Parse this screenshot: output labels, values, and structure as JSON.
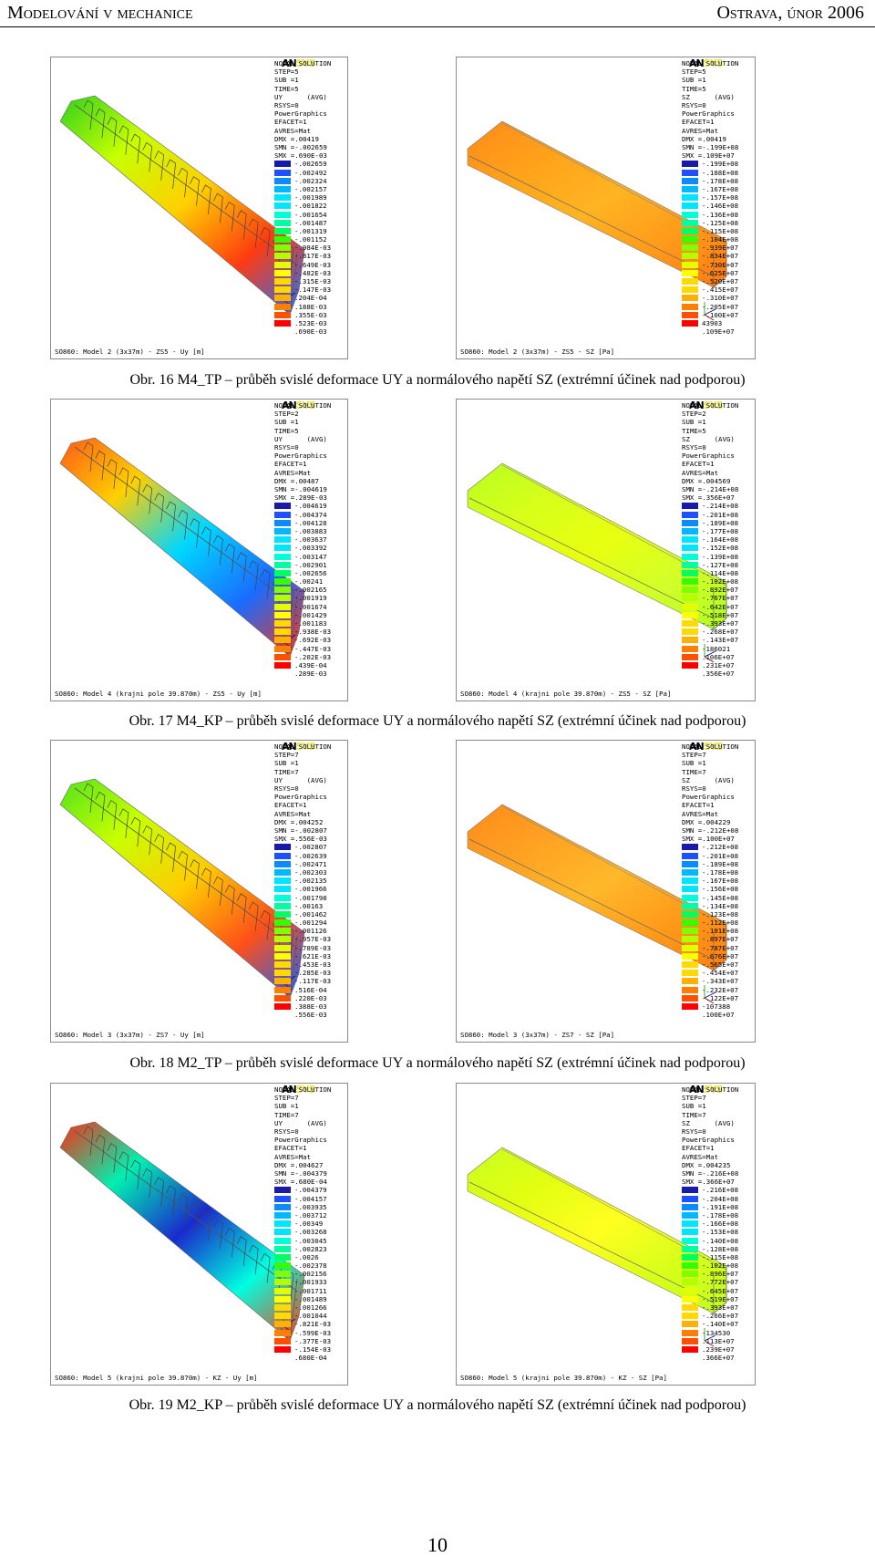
{
  "header": {
    "left_title": "Modelování v mechanice",
    "right_title": "Ostrava, únor 2006"
  },
  "logo": {
    "part1": "AN",
    "part2": "SYS"
  },
  "legend_colors": [
    "#1a1aa8",
    "#1f50ff",
    "#0a8cff",
    "#00b8ff",
    "#00e5ff",
    "#00ffd6",
    "#00ffa0",
    "#00ff60",
    "#33ff00",
    "#7fff00",
    "#b3ff00",
    "#e1ff00",
    "#ffff00",
    "#ffd900",
    "#ffb000",
    "#ff8000",
    "#ff5000",
    "#ff0000"
  ],
  "figures": [
    {
      "caption": "Obr. 16 M4_TP – průběh svislé deformace UY a normálového napětí SZ (extrémní účinek nad podporou)",
      "panels": [
        {
          "info": [
            "NODAL SOLUTION",
            "STEP=5",
            "SUB =1",
            "TIME=5",
            "UY      (AVG)",
            "RSYS=0",
            "PowerGraphics",
            "EFACET=1",
            "AVRES=Mat",
            "DMX =.00419",
            "SMN =-.002659",
            "SMX =.690E-03"
          ],
          "legend": [
            "-.002659",
            "-.002492",
            "-.002324",
            "-.002157",
            "-.001989",
            "-.001822",
            "-.001654",
            "-.001487",
            "-.001319",
            "-.001152",
            "-.984E-03",
            "-.817E-03",
            "-.649E-03",
            "-.482E-03",
            "-.315E-03",
            "-.147E-03",
            ".204E-04",
            ".188E-03",
            ".355E-03",
            ".523E-03",
            ".690E-03"
          ],
          "footer": "SO860: Model 2 (3x37m) - ZS5 - Uy [m]"
        },
        {
          "info": [
            "NODAL SOLUTION",
            "STEP=5",
            "SUB =1",
            "TIME=5",
            "SZ      (AVG)",
            "RSYS=0",
            "PowerGraphics",
            "EFACET=1",
            "AVRES=Mat",
            "DMX =.00419",
            "SMN =-.199E+08",
            "SMX =.109E+07"
          ],
          "legend": [
            "-.199E+08",
            "-.188E+08",
            "-.178E+08",
            "-.167E+08",
            "-.157E+08",
            "-.146E+08",
            "-.136E+08",
            "-.125E+08",
            "-.115E+08",
            "-.104E+08",
            "-.939E+07",
            "-.834E+07",
            "-.730E+07",
            "-.625E+07",
            "-.520E+07",
            "-.415E+07",
            "-.310E+07",
            "-.205E+07",
            "-.100E+07",
            "43903",
            ".109E+07"
          ],
          "footer": "SO860: Model 2 (3x37m) - ZS5 - SZ [Pa]"
        }
      ]
    },
    {
      "caption": "Obr. 17 M4_KP – průběh svislé deformace UY a normálového napětí SZ (extrémní účinek nad podporou)",
      "panels": [
        {
          "info": [
            "NODAL SOLUTION",
            "STEP=2",
            "SUB =1",
            "TIME=5",
            "UY      (AVG)",
            "RSYS=0",
            "PowerGraphics",
            "EFACET=1",
            "AVRES=Mat",
            "DMX =.00487",
            "SMN =-.004619",
            "SMX =.289E-03"
          ],
          "legend": [
            "-.004619",
            "-.004374",
            "-.004128",
            "-.003883",
            "-.003637",
            "-.003392",
            "-.003147",
            "-.002901",
            "-.002656",
            "-.00241",
            "-.002165",
            "-.001919",
            "-.001674",
            "-.001429",
            "-.001183",
            "-.938E-03",
            "-.692E-03",
            "-.447E-03",
            "-.202E-03",
            ".439E-04",
            ".289E-03"
          ],
          "footer": "SO860: Model 4 (krajni pole 39.870m) - ZS5 - Uy [m]"
        },
        {
          "info": [
            "NODAL SOLUTION",
            "STEP=2",
            "SUB =1",
            "TIME=5",
            "SZ      (AVG)",
            "RSYS=0",
            "PowerGraphics",
            "EFACET=1",
            "AVRES=Mat",
            "DMX =.004569",
            "SMN =-.214E+08",
            "SMX =.356E+07"
          ],
          "legend": [
            "-.214E+08",
            "-.201E+08",
            "-.189E+08",
            "-.177E+08",
            "-.164E+08",
            "-.152E+08",
            "-.139E+08",
            "-.127E+08",
            "-.114E+08",
            "-.102E+08",
            "-.892E+07",
            "-.767E+07",
            "-.642E+07",
            "-.518E+07",
            "-.393E+07",
            "-.268E+07",
            "-.143E+07",
            "-186021",
            ".106E+07",
            ".231E+07",
            ".356E+07"
          ],
          "footer": "SO860: Model 4 (krajni pole 39.870m) - ZS5 - SZ [Pa]"
        }
      ]
    },
    {
      "caption": "Obr. 18 M2_TP – průběh svislé deformace UY a normálového napětí SZ (extrémní účinek nad podporou)",
      "panels": [
        {
          "info": [
            "NODAL SOLUTION",
            "STEP=7",
            "SUB =1",
            "TIME=7",
            "UY      (AVG)",
            "RSYS=0",
            "PowerGraphics",
            "EFACET=1",
            "AVRES=Mat",
            "DMX =.004252",
            "SMN =-.002807",
            "SMX =.556E-03"
          ],
          "legend": [
            "-.002807",
            "-.002639",
            "-.002471",
            "-.002303",
            "-.002135",
            "-.001966",
            "-.001798",
            "-.00163",
            "-.001462",
            "-.001294",
            "-.001126",
            "-.957E-03",
            "-.789E-03",
            "-.621E-03",
            "-.453E-03",
            "-.285E-03",
            "-.117E-03",
            ".516E-04",
            ".220E-03",
            ".388E-03",
            ".556E-03"
          ],
          "footer": "SO860: Model 3 (3x37m) - ZS7 - Uy [m]"
        },
        {
          "info": [
            "NODAL SOLUTION",
            "STEP=7",
            "SUB =1",
            "TIME=7",
            "SZ      (AVG)",
            "RSYS=0",
            "PowerGraphics",
            "EFACET=1",
            "AVRES=Mat",
            "DMX =.004229",
            "SMN =-.212E+08",
            "SMX =.100E+07"
          ],
          "legend": [
            "-.212E+08",
            "-.201E+08",
            "-.189E+08",
            "-.178E+08",
            "-.167E+08",
            "-.156E+08",
            "-.145E+08",
            "-.134E+08",
            "-.123E+08",
            "-.112E+08",
            "-.101E+08",
            "-.897E+07",
            "-.787E+07",
            "-.676E+07",
            "-.565E+07",
            "-.454E+07",
            "-.343E+07",
            "-.232E+07",
            "-.122E+07",
            "-107388",
            ".100E+07"
          ],
          "footer": "SO860: Model 3 (3x37m) - ZS7 - SZ [Pa]"
        }
      ]
    },
    {
      "caption": "Obr. 19 M2_KP – průběh svislé deformace UY a normálového napětí SZ (extrémní účinek nad podporou)",
      "panels": [
        {
          "info": [
            "NODAL SOLUTION",
            "STEP=7",
            "SUB =1",
            "TIME=7",
            "UY      (AVG)",
            "RSYS=0",
            "PowerGraphics",
            "EFACET=1",
            "AVRES=Mat",
            "DMX =.004627",
            "SMN =-.004379",
            "SMX =.680E-04"
          ],
          "legend": [
            "-.004379",
            "-.004157",
            "-.003935",
            "-.003712",
            "-.00349",
            "-.003268",
            "-.003045",
            "-.002823",
            "-.0026",
            "-.002378",
            "-.002156",
            "-.001933",
            "-.001711",
            "-.001489",
            "-.001266",
            "-.001044",
            "-.821E-03",
            "-.599E-03",
            "-.377E-03",
            "-.154E-03",
            ".680E-04"
          ],
          "footer": "SO860: Model 5 (krajni pole 39.870m) - KZ - Uy [m]"
        },
        {
          "info": [
            "NODAL SOLUTION",
            "STEP=7",
            "SUB =1",
            "TIME=7",
            "SZ      (AVG)",
            "RSYS=0",
            "PowerGraphics",
            "EFACET=1",
            "AVRES=Mat",
            "DMX =.004235",
            "SMN =-.216E+08",
            "SMX =.366E+07"
          ],
          "legend": [
            "-.216E+08",
            "-.204E+08",
            "-.191E+08",
            "-.178E+08",
            "-.166E+08",
            "-.153E+08",
            "-.140E+08",
            "-.128E+08",
            "-.115E+08",
            "-.102E+08",
            "-.896E+07",
            "-.772E+07",
            "-.645E+07",
            "-.519E+07",
            "-.393E+07",
            "-.266E+07",
            "-.140E+07",
            "-134530",
            ".113E+07",
            ".239E+07",
            ".366E+07"
          ],
          "footer": "SO860: Model 5 (krajni pole 39.870m) - KZ - SZ [Pa]"
        }
      ]
    }
  ],
  "page_number": "10"
}
